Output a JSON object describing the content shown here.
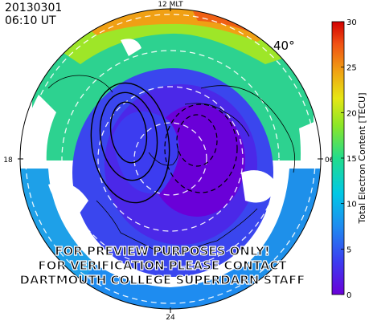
{
  "header": {
    "date": "20130301",
    "time": "06:10 UT"
  },
  "mlt": {
    "top": "12 MLT",
    "left": "18",
    "right": "06",
    "bottom": "24"
  },
  "latitude_label": "40°",
  "watermark": [
    "FOR PREVIEW PURPOSES ONLY!",
    "FOR VERIFICATION PLEASE CONTACT",
    "DARTMOUTH COLLEGE SUPERDARN STAFF"
  ],
  "colorbar": {
    "title": "Total Electron Content [TECU]",
    "min": 0,
    "max": 30,
    "ticks": [
      "0",
      "5",
      "10",
      "15",
      "20",
      "25",
      "30"
    ],
    "colors": [
      "#6a00d8",
      "#3c3cf0",
      "#1e8cf0",
      "#00c8e6",
      "#22dc8c",
      "#8ce628",
      "#e6e614",
      "#f0a014",
      "#f05014",
      "#d20000"
    ]
  }
}
